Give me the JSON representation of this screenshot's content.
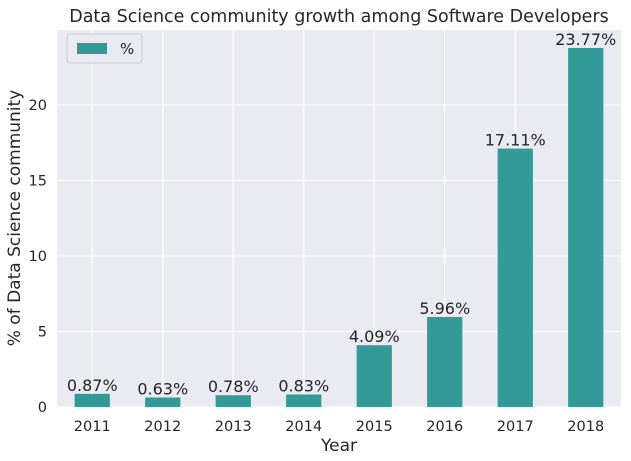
{
  "chart_data": {
    "type": "bar",
    "title": "Data Science community growth among Software Developers",
    "xlabel": "Year",
    "ylabel": "% of Data Science community",
    "categories": [
      "2011",
      "2012",
      "2013",
      "2014",
      "2015",
      "2016",
      "2017",
      "2018"
    ],
    "series": [
      {
        "name": "%",
        "values": [
          0.87,
          0.63,
          0.78,
          0.83,
          4.09,
          5.96,
          17.11,
          23.77
        ],
        "labels": [
          "0.87%",
          "0.63%",
          "0.78%",
          "0.83%",
          "4.09%",
          "5.96%",
          "17.11%",
          "23.77%"
        ],
        "color": "#339a98"
      }
    ],
    "ylim": [
      0,
      24.96
    ],
    "yticks": [
      0,
      5,
      10,
      15,
      20
    ],
    "grid": true,
    "legend_position": "top-left",
    "background_color": "#eaeaf2",
    "grid_color": "#ffffff"
  }
}
